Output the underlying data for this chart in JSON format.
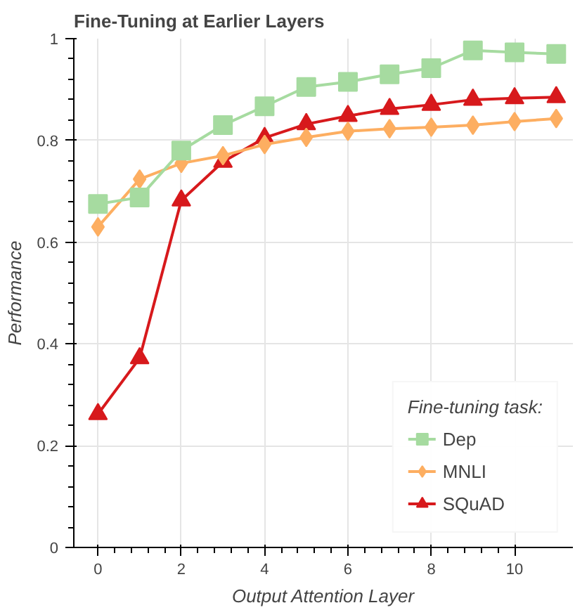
{
  "chart_data": {
    "type": "line",
    "title": "Fine-Tuning at Earlier Layers",
    "xlabel": "Output Attention Layer",
    "ylabel": "Performance",
    "legend_title": "Fine-tuning task:",
    "x": [
      0,
      1,
      2,
      3,
      4,
      5,
      6,
      7,
      8,
      9,
      10,
      11
    ],
    "series": [
      {
        "name": "Dep",
        "color": "#a6dba0",
        "marker": "square",
        "values": [
          0.675,
          0.688,
          0.78,
          0.83,
          0.867,
          0.905,
          0.915,
          0.93,
          0.942,
          0.977,
          0.973,
          0.97
        ]
      },
      {
        "name": "MNLI",
        "color": "#fdae61",
        "marker": "diamond",
        "values": [
          0.63,
          0.724,
          0.755,
          0.77,
          0.792,
          0.806,
          0.818,
          0.823,
          0.826,
          0.83,
          0.837,
          0.843
        ]
      },
      {
        "name": "SQuAD",
        "color": "#d7191c",
        "marker": "triangle",
        "values": [
          0.262,
          0.372,
          0.682,
          0.758,
          0.805,
          0.832,
          0.848,
          0.862,
          0.87,
          0.88,
          0.883,
          0.885
        ]
      }
    ],
    "xlim": [
      -0.58,
      11.4
    ],
    "ylim": [
      0,
      1
    ],
    "xticks": [
      0,
      2,
      4,
      6,
      8,
      10
    ],
    "yticks": [
      0,
      0.2,
      0.4,
      0.6,
      0.8,
      1
    ],
    "grid": true,
    "legend": "bottom right",
    "line_style": "solid"
  }
}
